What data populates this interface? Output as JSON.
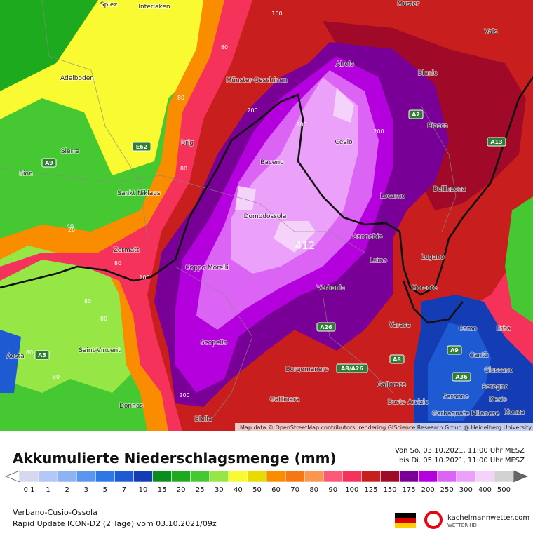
{
  "map": {
    "places": [
      "Spiez",
      "Interlaken",
      "Muster",
      "Vals",
      "Airolo",
      "Blenio",
      "Adelboden",
      "Münster-Geschinen",
      "Biasca",
      "Brig",
      "Cevio",
      "Sierre",
      "Baceno",
      "Sion",
      "Bellinzona",
      "Sankt Niklaus",
      "Locarno",
      "Domodossola",
      "Cannobio",
      "Zermatt",
      "Lugano",
      "Luino",
      "Coppo Morelli",
      "Verbania",
      "Morcote",
      "Varese",
      "Como",
      "Erba",
      "Saint-Vincent",
      "Aosta",
      "Cantù",
      "Scopello",
      "Borgomanero",
      "Giussano",
      "Gallarate",
      "Seregno",
      "Busto Arsizio",
      "Saronno",
      "Desio",
      "Donnas",
      "Gattinara",
      "Garbagnate Milanese",
      "Monza",
      "Biella"
    ],
    "roads": [
      "A9",
      "E62",
      "A2",
      "A13",
      "A26",
      "A8/A26",
      "A8",
      "A9",
      "A36",
      "A5"
    ],
    "contour_labels": [
      100,
      80,
      80,
      80,
      80,
      100,
      200,
      200,
      80,
      80,
      80,
      200,
      40,
      20,
      80,
      200
    ],
    "peak": "412",
    "attribution": "Map data © OpenStreetMap contributors, rendering GIScience Research Group @ Heidelberg University"
  },
  "legend": {
    "title": "Akkumulierte Niederschlagsmenge (mm)",
    "period_from": "Von So. 03.10.2021, 11:00 Uhr MESZ",
    "period_to": "bis Di. 05.10.2021, 11:00 Uhr MESZ",
    "ticks": [
      0.1,
      1,
      2,
      3,
      5,
      7,
      10,
      15,
      20,
      25,
      30,
      40,
      50,
      60,
      70,
      80,
      90,
      100,
      125,
      150,
      175,
      200,
      250,
      300,
      400,
      500
    ],
    "colors": [
      "#d7d7f0",
      "#b4c8f5",
      "#8cb4f5",
      "#5a96f0",
      "#2d78e6",
      "#1e5ad2",
      "#143cb4",
      "#0a8c1e",
      "#1eaa1e",
      "#46c832",
      "#96e646",
      "#fafa32",
      "#e6dc00",
      "#fa8c00",
      "#f57814",
      "#fa9650",
      "#fa5a78",
      "#f5325a",
      "#c81e1e",
      "#a00a28",
      "#780096",
      "#b400dc",
      "#dc64f5",
      "#eba0fa",
      "#f5d2fa",
      "#d2d2d2"
    ]
  },
  "footer": {
    "region": "Verbano-Cusio-Ossola",
    "model": "Rapid Update ICON-D2 (2 Tage) vom 03.10.2021/09z",
    "site": "kachelmannwetter.com",
    "site_sub": "WETTER HD"
  }
}
